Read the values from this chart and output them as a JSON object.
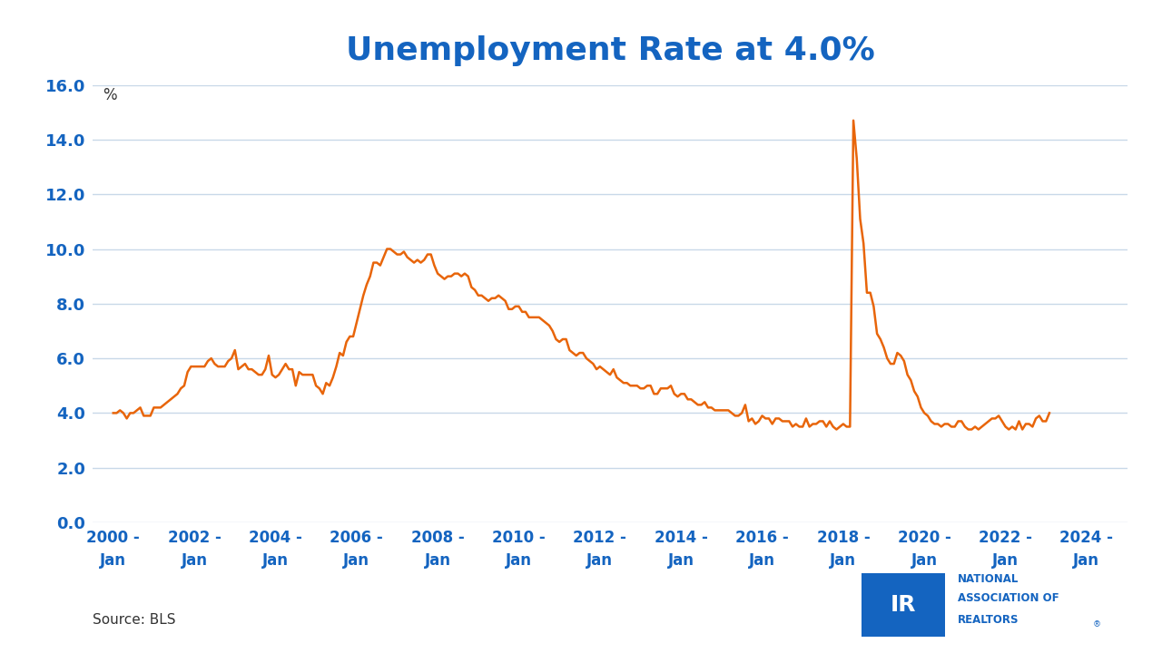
{
  "title": "Unemployment Rate at 4.0%",
  "title_color": "#1464C0",
  "line_color": "#E8650A",
  "tick_label_color": "#1464C0",
  "background_color": "#FFFFFF",
  "grid_color": "#C8D8E8",
  "ylabel_text": "%",
  "source_text": "Source: BLS",
  "ylim": [
    0.0,
    16.0
  ],
  "yticks": [
    0.0,
    2.0,
    4.0,
    6.0,
    8.0,
    10.0,
    12.0,
    14.0,
    16.0
  ],
  "xtick_years": [
    2000,
    2002,
    2004,
    2006,
    2008,
    2010,
    2012,
    2014,
    2016,
    2018,
    2020,
    2022,
    2024
  ],
  "line_width": 1.8,
  "nar_logo_box_color": "#1464C0",
  "unemployment_data": [
    4.0,
    4.0,
    4.1,
    4.0,
    3.8,
    4.0,
    4.0,
    4.1,
    4.2,
    3.9,
    3.9,
    3.9,
    4.2,
    4.2,
    4.2,
    4.3,
    4.4,
    4.5,
    4.6,
    4.7,
    4.9,
    5.0,
    5.5,
    5.7,
    5.7,
    5.7,
    5.7,
    5.7,
    5.9,
    6.0,
    5.8,
    5.7,
    5.7,
    5.7,
    5.9,
    6.0,
    6.3,
    5.6,
    5.7,
    5.8,
    5.6,
    5.6,
    5.5,
    5.4,
    5.4,
    5.6,
    6.1,
    5.4,
    5.3,
    5.4,
    5.6,
    5.8,
    5.6,
    5.6,
    5.0,
    5.5,
    5.4,
    5.4,
    5.4,
    5.4,
    5.0,
    4.9,
    4.7,
    5.1,
    5.0,
    5.3,
    5.7,
    6.2,
    6.1,
    6.6,
    6.8,
    6.8,
    7.3,
    7.8,
    8.3,
    8.7,
    9.0,
    9.5,
    9.5,
    9.4,
    9.7,
    10.0,
    10.0,
    9.9,
    9.8,
    9.8,
    9.9,
    9.7,
    9.6,
    9.5,
    9.6,
    9.5,
    9.6,
    9.8,
    9.8,
    9.4,
    9.1,
    9.0,
    8.9,
    9.0,
    9.0,
    9.1,
    9.1,
    9.0,
    9.1,
    9.0,
    8.6,
    8.5,
    8.3,
    8.3,
    8.2,
    8.1,
    8.2,
    8.2,
    8.3,
    8.2,
    8.1,
    7.8,
    7.8,
    7.9,
    7.9,
    7.7,
    7.7,
    7.5,
    7.5,
    7.5,
    7.5,
    7.4,
    7.3,
    7.2,
    7.0,
    6.7,
    6.6,
    6.7,
    6.7,
    6.3,
    6.2,
    6.1,
    6.2,
    6.2,
    6.0,
    5.9,
    5.8,
    5.6,
    5.7,
    5.6,
    5.5,
    5.4,
    5.6,
    5.3,
    5.2,
    5.1,
    5.1,
    5.0,
    5.0,
    5.0,
    4.9,
    4.9,
    5.0,
    5.0,
    4.7,
    4.7,
    4.9,
    4.9,
    4.9,
    5.0,
    4.7,
    4.6,
    4.7,
    4.7,
    4.5,
    4.5,
    4.4,
    4.3,
    4.3,
    4.4,
    4.2,
    4.2,
    4.1,
    4.1,
    4.1,
    4.1,
    4.1,
    4.0,
    3.9,
    3.9,
    4.0,
    4.3,
    3.7,
    3.8,
    3.6,
    3.7,
    3.9,
    3.8,
    3.8,
    3.6,
    3.8,
    3.8,
    3.7,
    3.7,
    3.7,
    3.5,
    3.6,
    3.5,
    3.5,
    3.8,
    3.5,
    3.6,
    3.6,
    3.7,
    3.7,
    3.5,
    3.7,
    3.5,
    3.4,
    3.5,
    3.6,
    3.5,
    3.5,
    14.7,
    13.3,
    11.1,
    10.2,
    8.4,
    8.4,
    7.9,
    6.9,
    6.7,
    6.4,
    6.0,
    5.8,
    5.8,
    6.2,
    6.1,
    5.9,
    5.4,
    5.2,
    4.8,
    4.6,
    4.2,
    4.0,
    3.9,
    3.7,
    3.6,
    3.6,
    3.5,
    3.6,
    3.6,
    3.5,
    3.5,
    3.7,
    3.7,
    3.5,
    3.4,
    3.4,
    3.5,
    3.4,
    3.5,
    3.6,
    3.7,
    3.8,
    3.8,
    3.9,
    3.7,
    3.5,
    3.4,
    3.5,
    3.4,
    3.7,
    3.4,
    3.6,
    3.6,
    3.5,
    3.8,
    3.9,
    3.7,
    3.7,
    4.0
  ]
}
